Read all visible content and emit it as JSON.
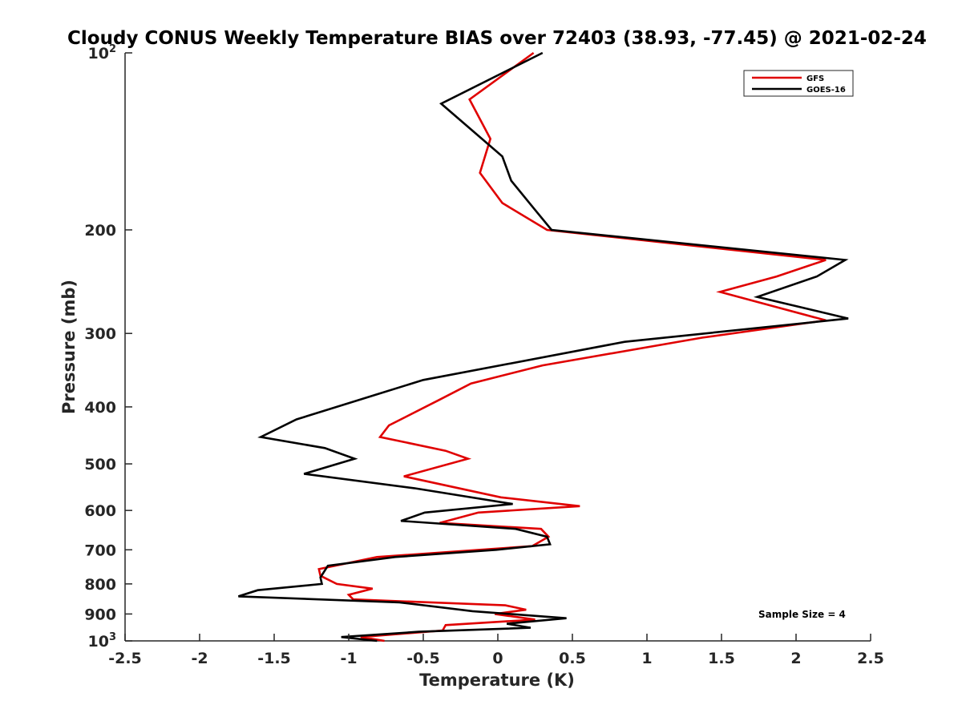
{
  "chart_data": {
    "type": "line",
    "title": "Cloudy CONUS Weekly Temperature BIAS over 72403 (38.93, -77.45) @ 2021-02-24",
    "xlabel": "Temperature (K)",
    "ylabel": "Pressure (mb)",
    "xlim": [
      -2.5,
      2.5
    ],
    "ylim": [
      100,
      1000
    ],
    "y_scale": "log",
    "y_reversed": true,
    "x_ticks": [
      "-2.5",
      "-2",
      "-1.5",
      "-1",
      "-0.5",
      "0",
      "0.5",
      "1",
      "1.5",
      "2",
      "2.5"
    ],
    "y_ticks": [
      {
        "value": 100,
        "base": "10",
        "exp": "2"
      },
      {
        "value": 200,
        "label": "200"
      },
      {
        "value": 300,
        "label": "300"
      },
      {
        "value": 400,
        "label": "400"
      },
      {
        "value": 500,
        "label": "500"
      },
      {
        "value": 600,
        "label": "600"
      },
      {
        "value": 700,
        "label": "700"
      },
      {
        "value": 800,
        "label": "800"
      },
      {
        "value": 900,
        "label": "900"
      },
      {
        "value": 1000,
        "base": "10",
        "exp": "3"
      }
    ],
    "grid": false,
    "legend_position": "top-right",
    "annotation": "Sample Size = 4",
    "series": [
      {
        "name": "GFS",
        "color": "#e00000",
        "points": [
          {
            "x": 0.24,
            "y": 100
          },
          {
            "x": -0.19,
            "y": 120
          },
          {
            "x": -0.05,
            "y": 140
          },
          {
            "x": -0.12,
            "y": 160
          },
          {
            "x": 0.03,
            "y": 180
          },
          {
            "x": 0.33,
            "y": 200
          },
          {
            "x": 2.2,
            "y": 225
          },
          {
            "x": 1.87,
            "y": 240
          },
          {
            "x": 1.49,
            "y": 255
          },
          {
            "x": 2.2,
            "y": 285
          },
          {
            "x": 1.37,
            "y": 305
          },
          {
            "x": 0.3,
            "y": 340
          },
          {
            "x": -0.18,
            "y": 365
          },
          {
            "x": -0.4,
            "y": 390
          },
          {
            "x": -0.73,
            "y": 430
          },
          {
            "x": -0.79,
            "y": 450
          },
          {
            "x": -0.35,
            "y": 475
          },
          {
            "x": -0.2,
            "y": 490
          },
          {
            "x": -0.63,
            "y": 525
          },
          {
            "x": 0.02,
            "y": 570
          },
          {
            "x": 0.55,
            "y": 590
          },
          {
            "x": -0.13,
            "y": 605
          },
          {
            "x": -0.39,
            "y": 630
          },
          {
            "x": 0.29,
            "y": 645
          },
          {
            "x": 0.34,
            "y": 665
          },
          {
            "x": 0.23,
            "y": 690
          },
          {
            "x": -0.81,
            "y": 720
          },
          {
            "x": -1.2,
            "y": 755
          },
          {
            "x": -1.19,
            "y": 775
          },
          {
            "x": -1.08,
            "y": 800
          },
          {
            "x": -0.84,
            "y": 815
          },
          {
            "x": -1.0,
            "y": 835
          },
          {
            "x": -0.97,
            "y": 850
          },
          {
            "x": 0.05,
            "y": 870
          },
          {
            "x": 0.19,
            "y": 885
          },
          {
            "x": -0.02,
            "y": 900
          },
          {
            "x": 0.25,
            "y": 920
          },
          {
            "x": -0.35,
            "y": 940
          },
          {
            "x": -0.37,
            "y": 960
          },
          {
            "x": -0.92,
            "y": 985
          },
          {
            "x": -0.76,
            "y": 1000
          }
        ]
      },
      {
        "name": "GOES-16",
        "color": "#000000",
        "points": [
          {
            "x": 0.3,
            "y": 100
          },
          {
            "x": -0.38,
            "y": 122
          },
          {
            "x": 0.03,
            "y": 150
          },
          {
            "x": 0.09,
            "y": 165
          },
          {
            "x": 0.25,
            "y": 185
          },
          {
            "x": 0.36,
            "y": 200
          },
          {
            "x": 2.33,
            "y": 225
          },
          {
            "x": 2.14,
            "y": 240
          },
          {
            "x": 1.74,
            "y": 260
          },
          {
            "x": 2.35,
            "y": 283
          },
          {
            "x": 0.85,
            "y": 310
          },
          {
            "x": -0.5,
            "y": 360
          },
          {
            "x": -0.8,
            "y": 380
          },
          {
            "x": -1.35,
            "y": 420
          },
          {
            "x": -1.59,
            "y": 450
          },
          {
            "x": -1.16,
            "y": 470
          },
          {
            "x": -0.96,
            "y": 490
          },
          {
            "x": -1.3,
            "y": 520
          },
          {
            "x": -0.56,
            "y": 550
          },
          {
            "x": 0.1,
            "y": 585
          },
          {
            "x": -0.49,
            "y": 605
          },
          {
            "x": -0.65,
            "y": 625
          },
          {
            "x": 0.12,
            "y": 645
          },
          {
            "x": 0.33,
            "y": 665
          },
          {
            "x": 0.35,
            "y": 685
          },
          {
            "x": -0.01,
            "y": 700
          },
          {
            "x": -0.69,
            "y": 720
          },
          {
            "x": -1.14,
            "y": 745
          },
          {
            "x": -1.19,
            "y": 780
          },
          {
            "x": -1.18,
            "y": 800
          },
          {
            "x": -1.61,
            "y": 820
          },
          {
            "x": -1.74,
            "y": 840
          },
          {
            "x": -0.66,
            "y": 860
          },
          {
            "x": -0.17,
            "y": 890
          },
          {
            "x": 0.46,
            "y": 915
          },
          {
            "x": 0.06,
            "y": 935
          },
          {
            "x": 0.22,
            "y": 950
          },
          {
            "x": -0.53,
            "y": 965
          },
          {
            "x": -1.05,
            "y": 985
          },
          {
            "x": -0.81,
            "y": 1000
          }
        ]
      }
    ]
  }
}
